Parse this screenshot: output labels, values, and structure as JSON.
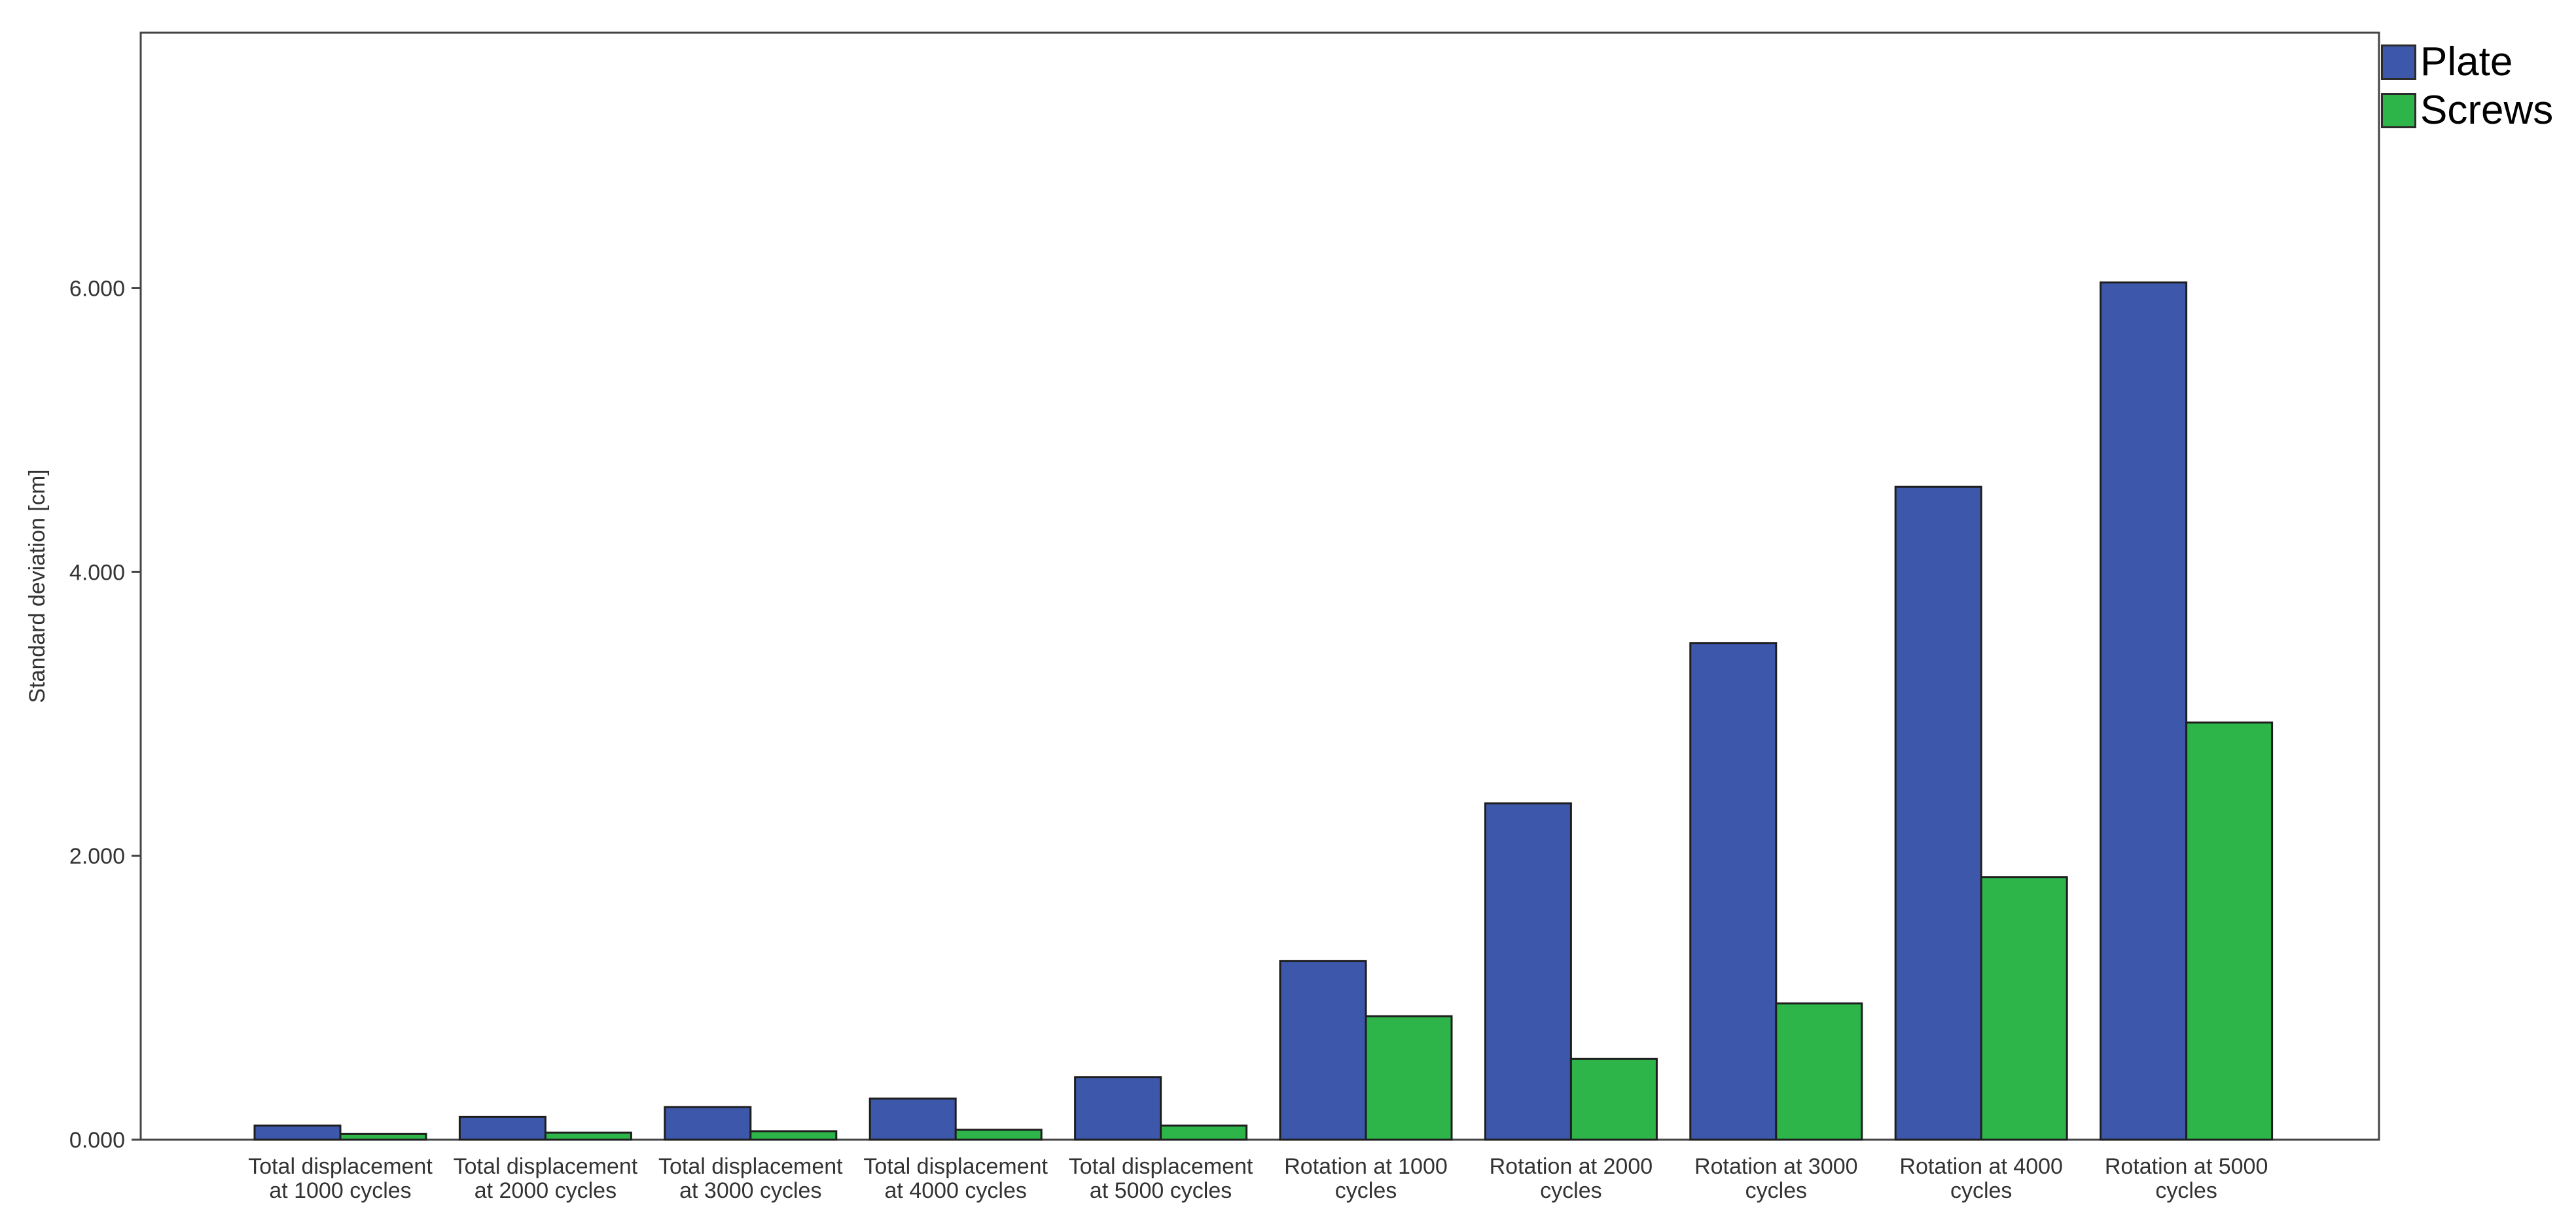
{
  "chart_data": {
    "type": "bar",
    "title": "",
    "xlabel": "",
    "ylabel": "Standard deviation [cm]",
    "ylim": [
      0,
      7.8
    ],
    "yticks": [
      0,
      2,
      4,
      6
    ],
    "ytick_labels": [
      "0.000",
      "2.000",
      "4.000",
      "6.000"
    ],
    "grid": false,
    "legend_position": "top-right outside",
    "categories": [
      [
        "Total displacement",
        "at 1000 cycles"
      ],
      [
        "Total displacement",
        "at 2000 cycles"
      ],
      [
        "Total displacement",
        "at 3000 cycles"
      ],
      [
        "Total displacement",
        "at 4000 cycles"
      ],
      [
        "Total displacement",
        "at 5000 cycles"
      ],
      [
        "Rotation at 1000",
        "cycles"
      ],
      [
        "Rotation at 2000",
        "cycles"
      ],
      [
        "Rotation at 3000",
        "cycles"
      ],
      [
        "Rotation at 4000",
        "cycles"
      ],
      [
        "Rotation at 5000",
        "cycles"
      ]
    ],
    "series": [
      {
        "name": "Plate",
        "color": "#3d58ab",
        "values": [
          0.1,
          0.16,
          0.23,
          0.29,
          0.44,
          1.26,
          2.37,
          3.5,
          4.6,
          6.04
        ]
      },
      {
        "name": "Screws",
        "color": "#2db54a",
        "values": [
          0.04,
          0.05,
          0.06,
          0.07,
          0.1,
          0.87,
          0.57,
          0.96,
          1.85,
          2.94
        ]
      }
    ]
  }
}
